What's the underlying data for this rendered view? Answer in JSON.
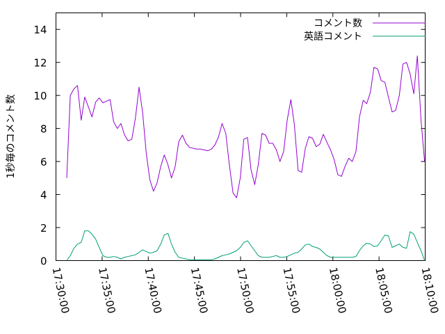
{
  "chart_data": {
    "type": "line",
    "ylabel": "1秒毎のコメント数",
    "xlabel": "",
    "ylim": [
      0,
      15
    ],
    "xlim": [
      "17:30:00",
      "18:10:00"
    ],
    "x_ticks": [
      "17:30:00",
      "17:35:00",
      "17:40:00",
      "17:45:00",
      "17:50:00",
      "17:55:00",
      "18:00:00",
      "18:05:00",
      "18:10:00"
    ],
    "y_ticks": [
      "0",
      "2",
      "4",
      "6",
      "8",
      "10",
      "12",
      "14"
    ],
    "legend_position": "top-right",
    "grid": false,
    "series": [
      {
        "name": "コメント数",
        "color": "#9400d3",
        "points": [
          [
            "17:31:10",
            5.0
          ],
          [
            "17:31:33",
            10.0
          ],
          [
            "17:31:57",
            10.4
          ],
          [
            "17:32:20",
            10.6
          ],
          [
            "17:32:44",
            8.5
          ],
          [
            "17:33:07",
            9.9
          ],
          [
            "17:33:31",
            9.3
          ],
          [
            "17:33:54",
            8.7
          ],
          [
            "17:34:18",
            9.6
          ],
          [
            "17:34:41",
            9.85
          ],
          [
            "17:35:05",
            9.55
          ],
          [
            "17:35:28",
            9.65
          ],
          [
            "17:35:52",
            9.75
          ],
          [
            "17:36:15",
            8.4
          ],
          [
            "17:36:39",
            8.0
          ],
          [
            "17:37:02",
            8.3
          ],
          [
            "17:37:26",
            7.6
          ],
          [
            "17:37:49",
            7.25
          ],
          [
            "17:38:13",
            7.35
          ],
          [
            "17:38:36",
            8.6
          ],
          [
            "17:39:00",
            10.5
          ],
          [
            "17:39:23",
            9.0
          ],
          [
            "17:39:47",
            6.5
          ],
          [
            "17:40:10",
            4.9
          ],
          [
            "17:40:34",
            4.2
          ],
          [
            "17:40:57",
            4.7
          ],
          [
            "17:41:21",
            5.7
          ],
          [
            "17:41:44",
            6.4
          ],
          [
            "17:42:08",
            5.8
          ],
          [
            "17:42:31",
            5.0
          ],
          [
            "17:42:55",
            5.7
          ],
          [
            "17:43:18",
            7.2
          ],
          [
            "17:43:42",
            7.6
          ],
          [
            "17:44:05",
            7.1
          ],
          [
            "17:44:29",
            6.85
          ],
          [
            "17:44:52",
            6.8
          ],
          [
            "17:45:16",
            6.75
          ],
          [
            "17:45:39",
            6.75
          ],
          [
            "17:46:03",
            6.7
          ],
          [
            "17:46:26",
            6.65
          ],
          [
            "17:46:50",
            6.75
          ],
          [
            "17:47:13",
            7.0
          ],
          [
            "17:47:37",
            7.5
          ],
          [
            "17:48:00",
            8.3
          ],
          [
            "17:48:24",
            7.7
          ],
          [
            "17:48:47",
            5.8
          ],
          [
            "17:49:11",
            4.1
          ],
          [
            "17:49:34",
            3.8
          ],
          [
            "17:49:58",
            5.0
          ],
          [
            "17:50:21",
            7.35
          ],
          [
            "17:50:45",
            7.45
          ],
          [
            "17:51:08",
            5.5
          ],
          [
            "17:51:32",
            4.6
          ],
          [
            "17:51:55",
            5.8
          ],
          [
            "17:52:19",
            7.7
          ],
          [
            "17:52:42",
            7.6
          ],
          [
            "17:53:06",
            7.1
          ],
          [
            "17:53:29",
            7.1
          ],
          [
            "17:53:53",
            6.7
          ],
          [
            "17:54:16",
            6.0
          ],
          [
            "17:54:40",
            6.6
          ],
          [
            "17:55:03",
            8.5
          ],
          [
            "17:55:27",
            9.75
          ],
          [
            "17:55:50",
            8.2
          ],
          [
            "17:56:14",
            5.45
          ],
          [
            "17:56:37",
            5.35
          ],
          [
            "17:57:01",
            6.8
          ],
          [
            "17:57:24",
            7.5
          ],
          [
            "17:57:48",
            7.4
          ],
          [
            "17:58:11",
            6.9
          ],
          [
            "17:58:35",
            7.05
          ],
          [
            "17:58:58",
            7.65
          ],
          [
            "17:59:22",
            7.15
          ],
          [
            "17:59:45",
            6.7
          ],
          [
            "18:00:09",
            6.1
          ],
          [
            "18:00:32",
            5.2
          ],
          [
            "18:00:56",
            5.1
          ],
          [
            "18:01:19",
            5.7
          ],
          [
            "18:01:43",
            6.2
          ],
          [
            "18:02:06",
            6.0
          ],
          [
            "18:02:30",
            6.6
          ],
          [
            "18:02:53",
            8.7
          ],
          [
            "18:03:17",
            9.7
          ],
          [
            "18:03:40",
            9.5
          ],
          [
            "18:04:04",
            10.2
          ],
          [
            "18:04:27",
            11.7
          ],
          [
            "18:04:51",
            11.6
          ],
          [
            "18:05:14",
            10.9
          ],
          [
            "18:05:38",
            10.8
          ],
          [
            "18:06:01",
            9.9
          ],
          [
            "18:06:25",
            9.0
          ],
          [
            "18:06:48",
            9.1
          ],
          [
            "18:07:12",
            10.0
          ],
          [
            "18:07:35",
            11.9
          ],
          [
            "18:07:59",
            12.0
          ],
          [
            "18:08:22",
            11.3
          ],
          [
            "18:08:46",
            10.1
          ],
          [
            "18:09:09",
            12.4
          ],
          [
            "18:09:33",
            8.5
          ],
          [
            "18:09:56",
            6.0
          ]
        ]
      },
      {
        "name": "英語コメント",
        "color": "#009e73",
        "points": [
          [
            "17:31:10",
            0.0
          ],
          [
            "17:31:33",
            0.3
          ],
          [
            "17:31:57",
            0.75
          ],
          [
            "17:32:20",
            1.0
          ],
          [
            "17:32:44",
            1.1
          ],
          [
            "17:33:07",
            1.8
          ],
          [
            "17:33:31",
            1.8
          ],
          [
            "17:33:54",
            1.6
          ],
          [
            "17:34:18",
            1.3
          ],
          [
            "17:34:41",
            0.8
          ],
          [
            "17:35:05",
            0.3
          ],
          [
            "17:35:28",
            0.2
          ],
          [
            "17:35:52",
            0.2
          ],
          [
            "17:36:15",
            0.25
          ],
          [
            "17:36:39",
            0.2
          ],
          [
            "17:37:02",
            0.1
          ],
          [
            "17:37:26",
            0.2
          ],
          [
            "17:37:49",
            0.25
          ],
          [
            "17:38:13",
            0.3
          ],
          [
            "17:38:36",
            0.35
          ],
          [
            "17:39:00",
            0.5
          ],
          [
            "17:39:23",
            0.65
          ],
          [
            "17:39:47",
            0.55
          ],
          [
            "17:40:10",
            0.45
          ],
          [
            "17:40:34",
            0.5
          ],
          [
            "17:40:57",
            0.6
          ],
          [
            "17:41:21",
            1.0
          ],
          [
            "17:41:44",
            1.55
          ],
          [
            "17:42:08",
            1.65
          ],
          [
            "17:42:31",
            1.0
          ],
          [
            "17:42:55",
            0.5
          ],
          [
            "17:43:18",
            0.2
          ],
          [
            "17:43:42",
            0.15
          ],
          [
            "17:44:05",
            0.1
          ],
          [
            "17:44:29",
            0.05
          ],
          [
            "17:44:52",
            0.05
          ],
          [
            "17:45:16",
            0.05
          ],
          [
            "17:45:39",
            0.05
          ],
          [
            "17:46:03",
            0.05
          ],
          [
            "17:46:26",
            0.05
          ],
          [
            "17:46:50",
            0.05
          ],
          [
            "17:47:13",
            0.1
          ],
          [
            "17:47:37",
            0.2
          ],
          [
            "17:48:00",
            0.3
          ],
          [
            "17:48:24",
            0.35
          ],
          [
            "17:48:47",
            0.4
          ],
          [
            "17:49:11",
            0.5
          ],
          [
            "17:49:34",
            0.6
          ],
          [
            "17:49:58",
            0.8
          ],
          [
            "17:50:21",
            1.1
          ],
          [
            "17:50:45",
            1.2
          ],
          [
            "17:51:08",
            0.9
          ],
          [
            "17:51:32",
            0.6
          ],
          [
            "17:51:55",
            0.3
          ],
          [
            "17:52:19",
            0.2
          ],
          [
            "17:52:42",
            0.2
          ],
          [
            "17:53:06",
            0.2
          ],
          [
            "17:53:29",
            0.25
          ],
          [
            "17:53:53",
            0.3
          ],
          [
            "17:54:16",
            0.2
          ],
          [
            "17:54:40",
            0.2
          ],
          [
            "17:55:03",
            0.25
          ],
          [
            "17:55:27",
            0.35
          ],
          [
            "17:55:50",
            0.45
          ],
          [
            "17:56:14",
            0.5
          ],
          [
            "17:56:37",
            0.7
          ],
          [
            "17:57:01",
            0.95
          ],
          [
            "17:57:24",
            1.0
          ],
          [
            "17:57:48",
            0.85
          ],
          [
            "17:58:11",
            0.8
          ],
          [
            "17:58:35",
            0.7
          ],
          [
            "17:58:58",
            0.5
          ],
          [
            "17:59:22",
            0.3
          ],
          [
            "17:59:45",
            0.2
          ],
          [
            "18:00:09",
            0.2
          ],
          [
            "18:00:32",
            0.2
          ],
          [
            "18:00:56",
            0.2
          ],
          [
            "18:01:19",
            0.2
          ],
          [
            "18:01:43",
            0.2
          ],
          [
            "18:02:06",
            0.2
          ],
          [
            "18:02:30",
            0.25
          ],
          [
            "18:02:53",
            0.6
          ],
          [
            "18:03:17",
            0.9
          ],
          [
            "18:03:40",
            1.05
          ],
          [
            "18:04:04",
            1.0
          ],
          [
            "18:04:27",
            0.85
          ],
          [
            "18:04:51",
            0.9
          ],
          [
            "18:05:14",
            1.2
          ],
          [
            "18:05:38",
            1.55
          ],
          [
            "18:06:01",
            1.5
          ],
          [
            "18:06:25",
            0.8
          ],
          [
            "18:06:48",
            0.9
          ],
          [
            "18:07:12",
            1.0
          ],
          [
            "18:07:35",
            0.8
          ],
          [
            "18:07:59",
            0.75
          ],
          [
            "18:08:22",
            1.75
          ],
          [
            "18:08:46",
            1.6
          ],
          [
            "18:09:09",
            1.1
          ],
          [
            "18:09:33",
            0.6
          ],
          [
            "18:09:56",
            0.0
          ]
        ]
      }
    ]
  }
}
